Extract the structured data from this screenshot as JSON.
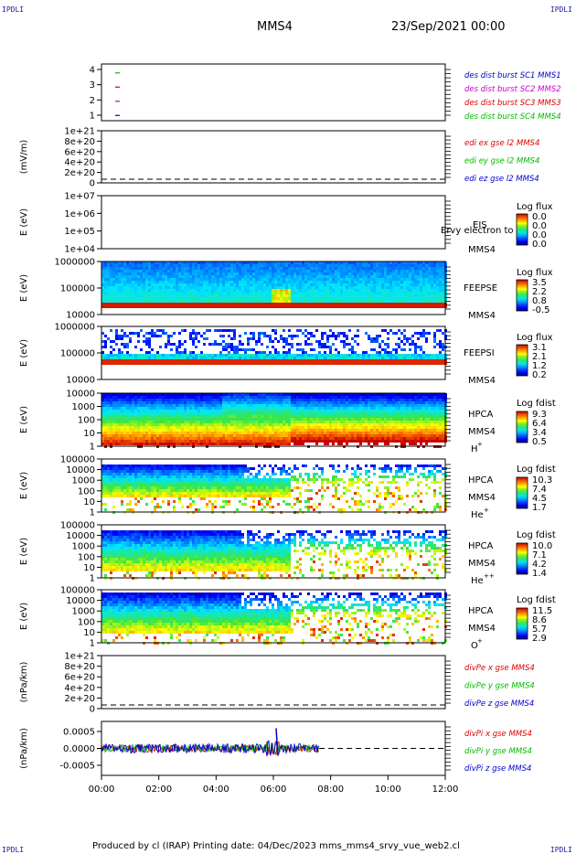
{
  "corners": {
    "top_left": "IPDLI",
    "top_right": "IPDLI",
    "bottom_left": "IPDLI",
    "bottom_right": "IPDLI"
  },
  "header": {
    "spacecraft": "MMS4",
    "datetime": "23/Sep/2021 00:00"
  },
  "footer": {
    "text": "Produced by cl (IRAP)    Printing date: 04/Dec/2023    mms_mms4_srvy_vue_web2.cl"
  },
  "colors": {
    "red": "#dd0000",
    "green": "#00bb00",
    "blue": "#0000cc",
    "magenta": "#cc00cc",
    "dash": "#000000"
  },
  "chart_data": {
    "type": "stacked-time-series",
    "time_axis": {
      "ticks": [
        "00:00",
        "02:00",
        "04:00",
        "06:00",
        "08:00",
        "10:00",
        "12:00"
      ],
      "range_hours": [
        0,
        12
      ]
    },
    "panels": [
      {
        "id": "burst",
        "type": "line",
        "yticks": [
          "4",
          "3",
          "2",
          "1"
        ],
        "legend": [
          {
            "label": "des dist burst SC1 MMS1",
            "color": "#0000cc"
          },
          {
            "label": "des dist burst SC2 MMS2",
            "color": "#cc00cc"
          },
          {
            "label": "des dist burst SC3 MMS3",
            "color": "#dd0000"
          },
          {
            "label": "des dist burst SC4 MMS4",
            "color": "#00bb00"
          }
        ],
        "marks": [
          {
            "y": 4,
            "color": "#00bb00"
          },
          {
            "y": 3,
            "color": "#dd0000"
          },
          {
            "y": 2,
            "color": "#cc00cc"
          },
          {
            "y": 1,
            "color": "#0000cc"
          }
        ]
      },
      {
        "id": "edi",
        "type": "line",
        "ylabel": "(mV/m)",
        "yticks": [
          "1e+21",
          "8e+20",
          "6e+20",
          "4e+20",
          "2e+20",
          "0"
        ],
        "legend": [
          {
            "label": "edi ex gse l2 MMS4",
            "color": "#dd0000"
          },
          {
            "label": "edi ey gse l2 MMS4",
            "color": "#00bb00"
          },
          {
            "label": "edi ez gse l2 MMS4",
            "color": "#0000cc"
          }
        ],
        "zero_line": true
      },
      {
        "id": "eis",
        "type": "heatmap",
        "ylabel": "E (eV)",
        "yticks": [
          "1e+07",
          "1e+06",
          "1e+05",
          "1e+04"
        ],
        "instrument": "EIS",
        "spacecraft": "MMS4",
        "overlay": "Ervy electron to",
        "colorbar": {
          "title": "Log flux",
          "labels": [
            "0.0",
            "0.0",
            "0.0",
            "0.0"
          ]
        }
      },
      {
        "id": "feepse",
        "type": "heatmap",
        "ylabel": "E (eV)",
        "yticks": [
          "1000000",
          "100000",
          "10000"
        ],
        "instrument": "FEEPSE",
        "spacecraft": "MMS4",
        "colorbar": {
          "title": "Log flux",
          "labels": [
            "3.5",
            "2.2",
            "0.8",
            "-0.5"
          ]
        }
      },
      {
        "id": "feepsi",
        "type": "heatmap",
        "ylabel": "E (eV)",
        "yticks": [
          "1000000",
          "100000",
          "10000"
        ],
        "instrument": "FEEPSI",
        "spacecraft": "MMS4",
        "colorbar": {
          "title": "Log flux",
          "labels": [
            "3.1",
            "2.1",
            "1.2",
            "0.2"
          ]
        }
      },
      {
        "id": "hpca_h",
        "type": "heatmap",
        "ylabel": "E (eV)",
        "yticks": [
          "10000",
          "1000",
          "100",
          "10",
          "1"
        ],
        "instrument": "HPCA",
        "spacecraft": "MMS4",
        "species": "H",
        "charge": "+",
        "colorbar": {
          "title": "Log fdist",
          "labels": [
            "9.3",
            "6.4",
            "3.4",
            "0.5"
          ]
        }
      },
      {
        "id": "hpca_he1",
        "type": "heatmap",
        "ylabel": "E (eV)",
        "yticks": [
          "100000",
          "10000",
          "1000",
          "100",
          "10",
          "1"
        ],
        "instrument": "HPCA",
        "spacecraft": "MMS4",
        "species": "He",
        "charge": "+",
        "colorbar": {
          "title": "Log fdist",
          "labels": [
            "10.3",
            "7.4",
            "4.5",
            "1.7"
          ]
        }
      },
      {
        "id": "hpca_he2",
        "type": "heatmap",
        "ylabel": "E (eV)",
        "yticks": [
          "100000",
          "10000",
          "1000",
          "100",
          "10",
          "1"
        ],
        "instrument": "HPCA",
        "spacecraft": "MMS4",
        "species": "He",
        "charge": "++",
        "colorbar": {
          "title": "Log fdist",
          "labels": [
            "10.0",
            "7.1",
            "4.2",
            "1.4"
          ]
        }
      },
      {
        "id": "hpca_o",
        "type": "heatmap",
        "ylabel": "E (eV)",
        "yticks": [
          "100000",
          "10000",
          "1000",
          "100",
          "10",
          "1"
        ],
        "instrument": "HPCA",
        "spacecraft": "MMS4",
        "species": "O",
        "charge": "+",
        "colorbar": {
          "title": "Log fdist",
          "labels": [
            "11.5",
            "8.6",
            "5.7",
            "2.9"
          ]
        }
      },
      {
        "id": "divpe",
        "type": "line",
        "ylabel": "(nPa/km)",
        "yticks": [
          "1e+21",
          "8e+20",
          "6e+20",
          "4e+20",
          "2e+20",
          "0"
        ],
        "legend": [
          {
            "label": "divPe x gse MMS4",
            "color": "#dd0000"
          },
          {
            "label": "divPe y gse MMS4",
            "color": "#00bb00"
          },
          {
            "label": "divPe z gse MMS4",
            "color": "#0000cc"
          }
        ],
        "zero_line": true
      },
      {
        "id": "divpi",
        "type": "line",
        "ylabel": "(nPa/km)",
        "yticks": [
          "0.0005",
          "0.0000",
          "-0.0005"
        ],
        "ylim": [
          -0.0008,
          0.0008
        ],
        "data_end_hours": 7.6,
        "legend": [
          {
            "label": "divPi x gse MMS4",
            "color": "#dd0000"
          },
          {
            "label": "divPi y gse MMS4",
            "color": "#00bb00"
          },
          {
            "label": "divPi z gse MMS4",
            "color": "#0000cc"
          }
        ],
        "zero_line": true
      }
    ]
  }
}
